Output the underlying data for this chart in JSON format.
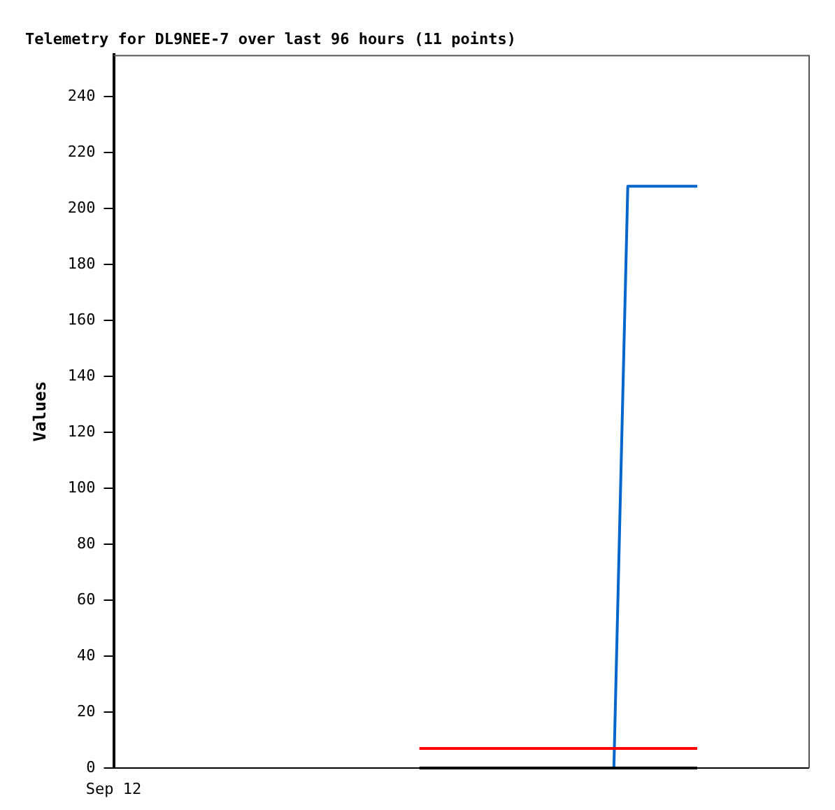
{
  "chart_data": {
    "type": "line",
    "title": "Telemetry for DL9NEE-7 over last 96 hours (11 points)",
    "ylabel": "Values",
    "annotations": [
      "Sep 12"
    ],
    "categories": [
      null,
      null,
      null,
      null,
      null,
      null,
      null,
      null,
      null,
      null,
      null,
      null,
      null,
      null,
      null,
      null,
      null,
      null,
      null,
      null,
      null,
      null,
      null,
      null,
      null,
      null,
      null,
      null,
      null,
      null,
      null,
      null,
      null,
      null,
      null,
      null,
      null,
      null,
      null,
      null,
      null,
      null,
      null,
      null,
      null,
      null,
      null,
      null,
      null,
      null,
      null
    ],
    "ylim": [
      0,
      255
    ],
    "yticks": [
      0,
      20,
      40,
      60,
      80,
      100,
      120,
      140,
      160,
      180,
      200,
      220,
      240
    ],
    "tick_labels": "y",
    "grid": false,
    "legend": false,
    "marker": "none",
    "line_style": "solid",
    "series": [
      {
        "color": "#ff0000",
        "values": [
          null,
          null,
          null,
          null,
          null,
          null,
          null,
          null,
          null,
          null,
          null,
          null,
          null,
          null,
          null,
          null,
          null,
          null,
          null,
          null,
          null,
          null,
          7,
          7,
          7,
          7,
          7,
          7,
          7,
          7,
          7,
          7,
          7,
          7,
          7,
          7,
          7,
          7,
          7,
          7,
          7,
          7,
          7,
          null,
          null,
          null,
          null,
          null,
          null,
          null,
          null
        ]
      },
      {
        "color": "#000000",
        "values": [
          null,
          null,
          null,
          null,
          null,
          null,
          null,
          null,
          null,
          null,
          null,
          null,
          null,
          null,
          null,
          null,
          null,
          null,
          null,
          null,
          null,
          null,
          0,
          0,
          0,
          0,
          0,
          0,
          0,
          0,
          0,
          0,
          0,
          0,
          0,
          0,
          0,
          0,
          0,
          0,
          0,
          0,
          0,
          null,
          null,
          null,
          null,
          null,
          null,
          null,
          null
        ]
      },
      {
        "color": "#0066cc",
        "values": [
          null,
          null,
          null,
          null,
          null,
          null,
          null,
          null,
          null,
          null,
          null,
          null,
          null,
          null,
          null,
          null,
          null,
          null,
          null,
          null,
          null,
          null,
          null,
          null,
          null,
          null,
          null,
          null,
          null,
          null,
          null,
          null,
          null,
          null,
          null,
          null,
          0,
          208,
          208,
          208,
          208,
          208,
          208,
          null,
          null,
          null,
          null,
          null,
          null,
          null,
          null
        ]
      }
    ]
  }
}
